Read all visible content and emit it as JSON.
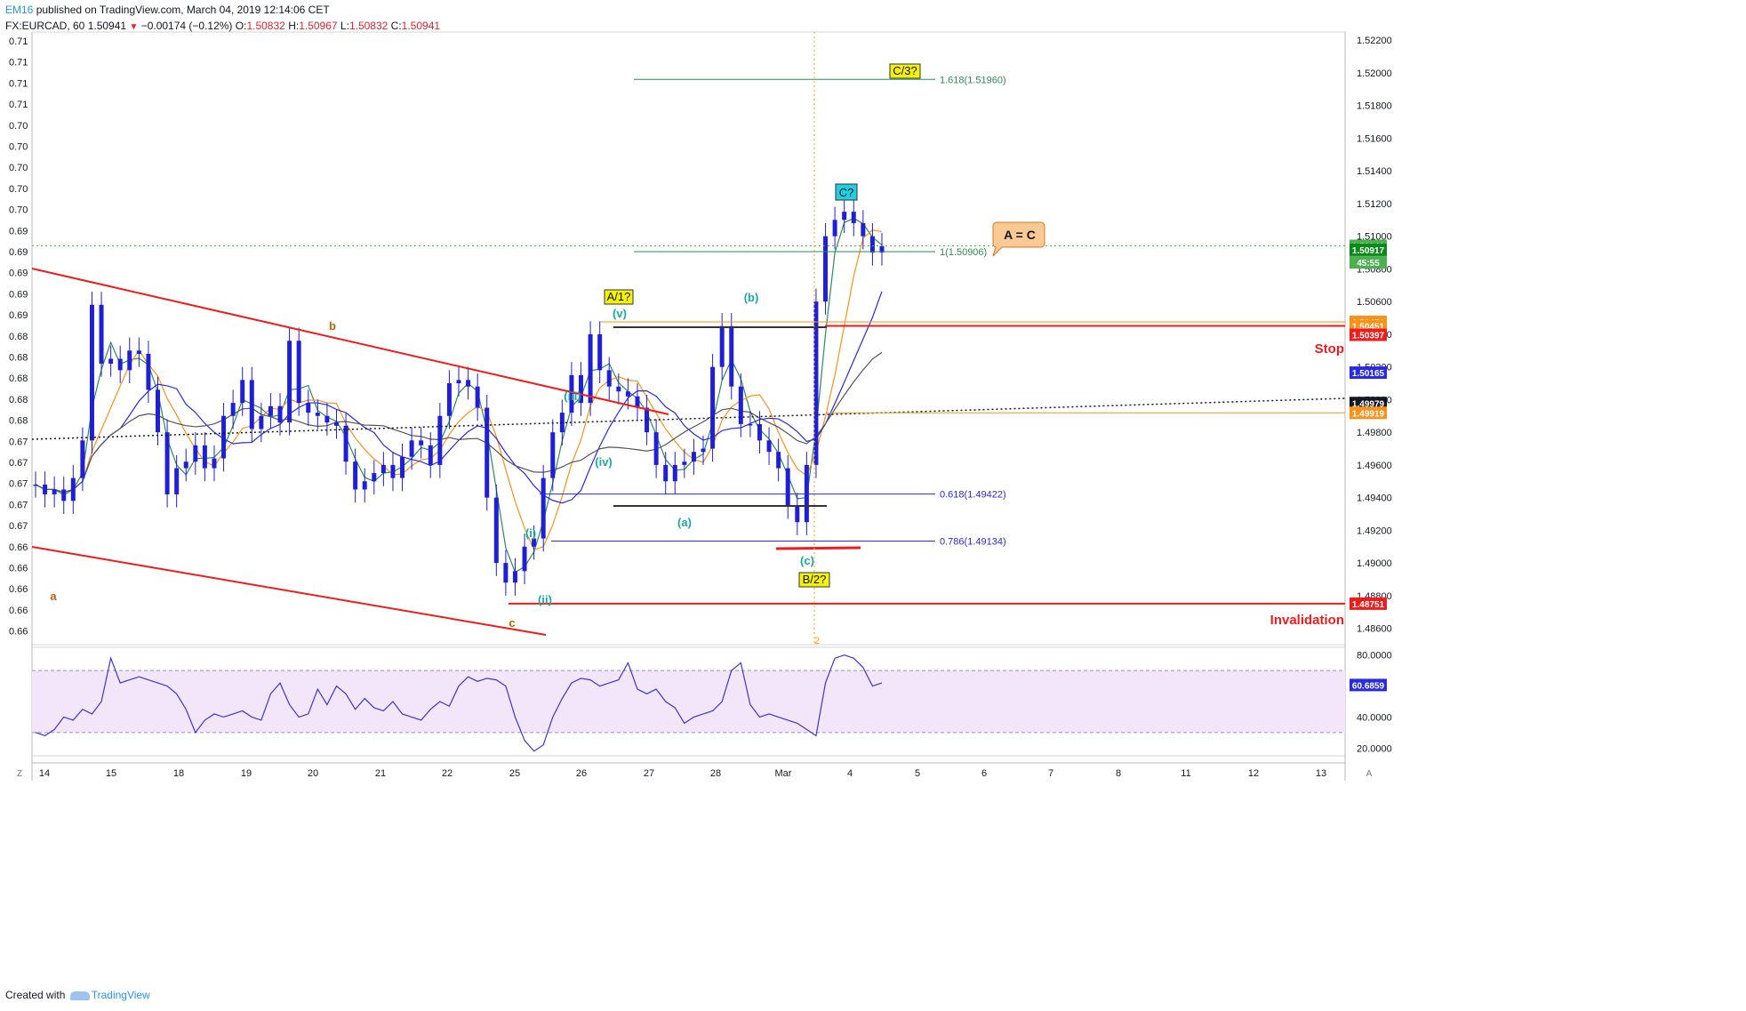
{
  "header": {
    "user": "EM16",
    "published": "published on TradingView.com, March 04, 2019 12:14:06 CET",
    "symbol": "FX:EURCAD, 60",
    "last": "1.50941",
    "change": "−0.00174 (−0.12%)",
    "o_label": "O:",
    "o": "1.50832",
    "h_label": "H:",
    "h": "1.50967",
    "l_label": "L:",
    "l": "1.50832",
    "c_label": "C:",
    "c": "1.50941"
  },
  "footer": {
    "created": "Created with",
    "brand": "TradingView"
  },
  "colors": {
    "red": "#ee1c1c",
    "green": "#2e8b57",
    "blue": "#2a2ae0",
    "orange": "#f7931a",
    "teal": "#1aa7a7",
    "brown": "#c06000",
    "rsi": "#3b35d6",
    "rsiband": "#f3e6fb",
    "candle": "#1f1fd6"
  },
  "left_axis_labels": [
    "0.71",
    "0.71",
    "0.71",
    "0.71",
    "0.70",
    "0.70",
    "0.70",
    "0.70",
    "0.70",
    "0.69",
    "0.69",
    "0.69",
    "0.69",
    "0.69",
    "0.68",
    "0.68",
    "0.68",
    "0.68",
    "0.68",
    "0.67",
    "0.67",
    "0.67",
    "0.67",
    "0.67",
    "0.66",
    "0.66",
    "0.66",
    "0.66",
    "0.66"
  ],
  "chart_data": {
    "type": "candlestick",
    "symbol": "FX:EURCAD",
    "timeframe": "60",
    "ylim": [
      1.485,
      1.5225
    ],
    "price_ticks": [
      "1.52200",
      "1.52000",
      "1.51800",
      "1.51600",
      "1.51400",
      "1.51200",
      "1.51000",
      "1.50800",
      "1.50600",
      "1.50400",
      "1.50200",
      "1.50000",
      "1.49800",
      "1.49600",
      "1.49400",
      "1.49200",
      "1.49000",
      "1.48800",
      "1.48600"
    ],
    "x_labels": [
      "14",
      "15",
      "18",
      "19",
      "20",
      "21",
      "22",
      "25",
      "26",
      "27",
      "28",
      "Mar",
      "4",
      "5",
      "6",
      "7",
      "8",
      "11",
      "12",
      "13"
    ],
    "close_series": [
      1.4948,
      1.4942,
      1.4945,
      1.4938,
      1.4952,
      1.4975,
      1.5058,
      1.5022,
      1.5025,
      1.5018,
      1.503,
      1.5028,
      1.5006,
      1.498,
      1.4942,
      1.4958,
      1.4962,
      1.4972,
      1.4958,
      1.4964,
      1.499,
      1.4998,
      1.5012,
      1.4982,
      1.499,
      1.4996,
      1.4986,
      1.5036,
      1.4998,
      1.4992,
      1.499,
      1.4986,
      1.4984,
      1.4962,
      1.4945,
      1.495,
      1.4955,
      1.496,
      1.4952,
      1.4965,
      1.4975,
      1.4972,
      1.496,
      1.499,
      1.501,
      1.5012,
      1.5008,
      1.4995,
      1.494,
      1.49,
      1.4888,
      1.4895,
      1.491,
      1.4915,
      1.4952,
      1.498,
      1.4992,
      1.5015,
      1.4998,
      1.504,
      1.5018,
      1.5008,
      1.5005,
      1.5002,
      1.4995,
      1.498,
      1.496,
      1.495,
      1.496,
      1.4962,
      1.4968,
      1.497,
      1.502,
      1.5045,
      1.5008,
      1.4985,
      1.4985,
      1.4975,
      1.4968,
      1.4958,
      1.4935,
      1.4925,
      1.496,
      1.506,
      1.51,
      1.511,
      1.5115,
      1.5108,
      1.51,
      1.509,
      1.5094
    ],
    "overlays": {
      "upper_channel": {
        "from": "Feb 13 1.5075",
        "to": "Feb 27 1.4997",
        "color": "#ee1c1c"
      },
      "lower_channel": {
        "from": "Feb 13 1.4912",
        "to": "Feb 25 1.4865",
        "color": "#ee1c1c"
      },
      "dotted_trendline": {
        "from": "Feb 13 1.4987",
        "to": "Mar 5 1.5013"
      },
      "black_line_top": 1.50476,
      "black_line_bottom": 1.494,
      "orange_line_top": 1.50476,
      "orange_line_bottom": 1.49919,
      "stop_line": 1.50451,
      "invalidation_line": 1.48751,
      "last_price_dotted": 1.50941
    },
    "fibonacci": [
      {
        "label": "1.618(1.51960)",
        "value": 1.5196
      },
      {
        "label": "1(1.50906)",
        "value": 1.50906
      },
      {
        "label": "0.618(1.49422)",
        "value": 1.49422
      },
      {
        "label": "0.786(1.49134)",
        "value": 1.49134
      }
    ],
    "price_labels": [
      {
        "text": "1.50941",
        "bg": "#4caf50",
        "value": 1.50941
      },
      {
        "text": "45:55",
        "bg": "#4caf50",
        "value": 1.5084
      },
      {
        "text": "1.50917",
        "bg": "#0a8a18",
        "value": 1.50917
      },
      {
        "text": "1.50476",
        "bg": "#f7931a",
        "value": 1.50476
      },
      {
        "text": "1.50451",
        "bg": "#f7931a",
        "value": 1.50451
      },
      {
        "text": "1.50397",
        "bg": "#ee1c1c",
        "value": 1.50397
      },
      {
        "text": "1.50165",
        "bg": "#2a2ae0",
        "value": 1.50165
      },
      {
        "text": "1.49979",
        "bg": "#131722",
        "value": 1.49979
      },
      {
        "text": "1.49919",
        "bg": "#f7931a",
        "value": 1.49919
      },
      {
        "text": "1.48751",
        "bg": "#ee1c1c",
        "value": 1.48751
      }
    ],
    "wave_labels": [
      "a",
      "b",
      "c",
      "(i)",
      "(ii)",
      "(iii)",
      "(iv)",
      "(v)",
      "A/1?",
      "(a)",
      "(b)",
      "(c)",
      "B/2?",
      "C?",
      "C/3?",
      "A = C",
      "Stop",
      "Invalidation",
      "2"
    ],
    "rsi": {
      "ylim": [
        15,
        85
      ],
      "ticks": [
        "80.0000",
        "40.0000",
        "20.0000"
      ],
      "band": [
        30,
        70
      ],
      "current": "60.6859",
      "values": [
        30,
        28,
        32,
        40,
        38,
        45,
        42,
        50,
        78,
        62,
        64,
        66,
        64,
        62,
        60,
        55,
        45,
        30,
        38,
        42,
        40,
        42,
        44,
        40,
        38,
        55,
        62,
        48,
        40,
        42,
        58,
        48,
        60,
        55,
        45,
        52,
        46,
        44,
        50,
        42,
        40,
        38,
        45,
        50,
        47,
        60,
        66,
        63,
        65,
        64,
        60,
        40,
        25,
        18,
        22,
        40,
        52,
        62,
        65,
        64,
        60,
        62,
        64,
        75,
        58,
        55,
        58,
        50,
        46,
        36,
        40,
        42,
        44,
        50,
        70,
        75,
        48,
        40,
        42,
        40,
        38,
        36,
        32,
        28,
        62,
        78,
        80,
        78,
        72,
        60,
        62
      ]
    },
    "xlabel": "",
    "ylabel": ""
  }
}
